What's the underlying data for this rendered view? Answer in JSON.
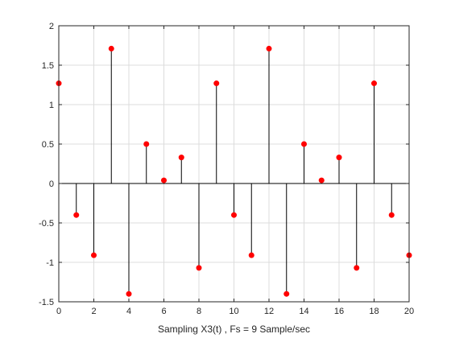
{
  "chart_data": {
    "type": "stem",
    "xlabel": "Sampling X3(t) , Fs = 9 Sample/sec",
    "xlim": [
      0,
      20
    ],
    "ylim": [
      -1.5,
      2
    ],
    "xticks": [
      "0",
      "2",
      "4",
      "6",
      "8",
      "10",
      "12",
      "14",
      "16",
      "18",
      "20"
    ],
    "yticks": [
      "-1.5",
      "-1",
      "-0.5",
      "0",
      "0.5",
      "1",
      "1.5",
      "2"
    ],
    "grid": true,
    "colors": {
      "stem": "#000000",
      "marker": "#ff0000",
      "grid": "#dcdcdc",
      "axis": "#262626"
    },
    "x": [
      0,
      1,
      2,
      3,
      4,
      5,
      6,
      7,
      8,
      9,
      10,
      11,
      12,
      13,
      14,
      15,
      16,
      17,
      18,
      19,
      20
    ],
    "y": [
      1.27,
      -0.4,
      -0.91,
      1.71,
      -1.4,
      0.5,
      0.04,
      0.33,
      -1.07,
      1.27,
      -0.4,
      -0.91,
      1.71,
      -1.4,
      0.5,
      0.04,
      0.33,
      -1.07,
      1.27,
      -0.4,
      -0.91
    ]
  }
}
